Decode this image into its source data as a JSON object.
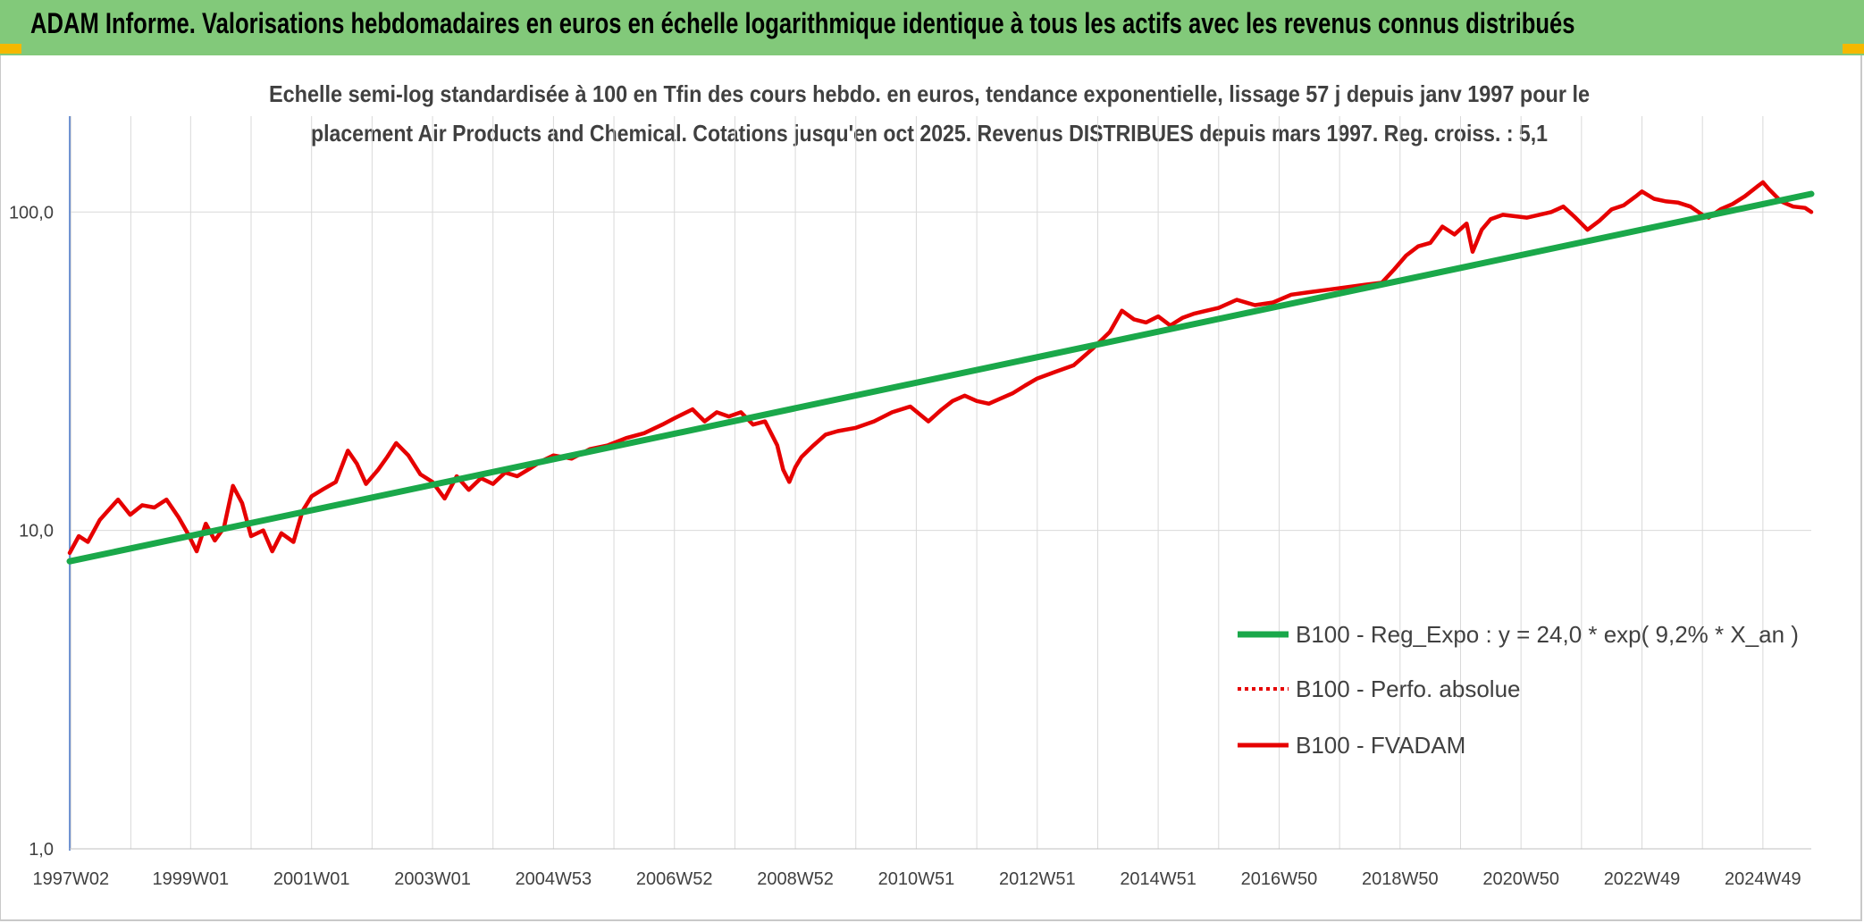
{
  "header": {
    "title": "ADAM Informe. Valorisations hebdomadaires en euros en échelle logarithmique identique à tous les actifs avec les revenus connus distribués"
  },
  "colors": {
    "header_bg": "#82c97a",
    "corner_accent": "#f5b800",
    "trend": "#1aa84a",
    "fvadam": "#e60000",
    "perfo": "#e60000",
    "grid": "#d9d9d9",
    "text": "#404040"
  },
  "chart_data": {
    "type": "line",
    "scale": "log",
    "title_lines": [
      "Echelle semi-log standardisée à 100 en Tfin des cours hebdo. en euros, tendance exponentielle, lissage 57 j depuis janv 1997 pour le",
      "placement Air Products and Chemical. Cotations jusqu'en oct 2025. Revenus DISTRIBUES depuis mars 1997. Reg. croiss. : 5,1"
    ],
    "grid": "vertical and horizontal",
    "legend_placement": "right",
    "y_ticks": [
      {
        "value": 1,
        "label": "1,0"
      },
      {
        "value": 10,
        "label": "10,0"
      },
      {
        "value": 100,
        "label": "100,0"
      }
    ],
    "ylim": [
      1,
      200
    ],
    "xlim": [
      1997.0,
      2025.8
    ],
    "x_ticks": [
      {
        "value": 1997.02,
        "label": "1997W02"
      },
      {
        "value": 1999.0,
        "label": "1999W01"
      },
      {
        "value": 2001.0,
        "label": "2001W01"
      },
      {
        "value": 2003.0,
        "label": "2003W01"
      },
      {
        "value": 2005.0,
        "label": "2004W53"
      },
      {
        "value": 2007.0,
        "label": "2006W52"
      },
      {
        "value": 2009.0,
        "label": "2008W52"
      },
      {
        "value": 2011.0,
        "label": "2010W51"
      },
      {
        "value": 2013.0,
        "label": "2012W51"
      },
      {
        "value": 2015.0,
        "label": "2014W51"
      },
      {
        "value": 2017.0,
        "label": "2016W50"
      },
      {
        "value": 2019.0,
        "label": "2018W50"
      },
      {
        "value": 2021.0,
        "label": "2020W50"
      },
      {
        "value": 2023.0,
        "label": "2022W49"
      },
      {
        "value": 2025.0,
        "label": "2024W49"
      }
    ],
    "series": [
      {
        "name": "B100 - Reg_Expo : y = 24,0 * exp( 9,2% *  X_an )",
        "style": "solid-thick",
        "color": "#1aa84a",
        "x": [
          1997.0,
          2025.8
        ],
        "y": [
          8.0,
          114.0
        ]
      },
      {
        "name": "B100 - Perfo. absolue",
        "style": "dotted",
        "color": "#e60000",
        "x": [],
        "y": []
      },
      {
        "name": "B100 - FVADAM",
        "style": "solid",
        "color": "#e60000",
        "x": [
          1997.0,
          1997.15,
          1997.3,
          1997.5,
          1997.8,
          1998.0,
          1998.2,
          1998.4,
          1998.6,
          1998.8,
          1998.95,
          1999.1,
          1999.25,
          1999.4,
          1999.55,
          1999.7,
          1999.85,
          2000.0,
          2000.2,
          2000.35,
          2000.5,
          2000.7,
          2000.85,
          2001.0,
          2001.2,
          2001.4,
          2001.6,
          2001.75,
          2001.9,
          2002.1,
          2002.25,
          2002.4,
          2002.6,
          2002.8,
          2003.0,
          2003.2,
          2003.4,
          2003.6,
          2003.8,
          2004.0,
          2004.2,
          2004.4,
          2004.6,
          2004.8,
          2005.0,
          2005.3,
          2005.6,
          2005.9,
          2006.2,
          2006.5,
          2006.8,
          2007.0,
          2007.3,
          2007.5,
          2007.7,
          2007.9,
          2008.1,
          2008.3,
          2008.5,
          2008.7,
          2008.8,
          2008.9,
          2009.0,
          2009.1,
          2009.3,
          2009.5,
          2009.7,
          2010.0,
          2010.3,
          2010.6,
          2010.9,
          2011.2,
          2011.4,
          2011.6,
          2011.8,
          2012.0,
          2012.2,
          2012.4,
          2012.6,
          2012.8,
          2013.0,
          2013.3,
          2013.6,
          2013.9,
          2014.2,
          2014.4,
          2014.6,
          2014.8,
          2015.0,
          2015.2,
          2015.4,
          2015.6,
          2015.8,
          2016.0,
          2016.3,
          2016.6,
          2016.9,
          2017.2,
          2017.5,
          2017.8,
          2018.1,
          2018.4,
          2018.7,
          2018.9,
          2019.1,
          2019.3,
          2019.5,
          2019.7,
          2019.9,
          2020.1,
          2020.2,
          2020.35,
          2020.5,
          2020.7,
          2020.9,
          2021.1,
          2021.3,
          2021.5,
          2021.7,
          2021.9,
          2022.1,
          2022.3,
          2022.5,
          2022.7,
          2022.9,
          2023.0,
          2023.2,
          2023.4,
          2023.6,
          2023.8,
          2024.0,
          2024.1,
          2024.3,
          2024.5,
          2024.7,
          2024.9,
          2025.0,
          2025.1,
          2025.3,
          2025.5,
          2025.7,
          2025.8
        ],
        "y": [
          8.5,
          9.6,
          9.2,
          10.8,
          12.5,
          11.2,
          12.0,
          11.8,
          12.5,
          11.0,
          9.8,
          8.6,
          10.5,
          9.3,
          10.2,
          13.8,
          12.2,
          9.6,
          10.0,
          8.6,
          9.8,
          9.2,
          11.5,
          12.8,
          13.5,
          14.2,
          17.8,
          16.2,
          14.0,
          15.5,
          17.0,
          18.8,
          17.2,
          15.0,
          14.2,
          12.6,
          14.8,
          13.4,
          14.6,
          14.0,
          15.2,
          14.8,
          15.6,
          16.5,
          17.2,
          16.8,
          18.0,
          18.5,
          19.5,
          20.2,
          21.5,
          22.5,
          24.0,
          22.0,
          23.5,
          22.8,
          23.5,
          21.5,
          22.0,
          18.5,
          15.5,
          14.2,
          15.8,
          17.0,
          18.5,
          20.0,
          20.5,
          21.0,
          22.0,
          23.5,
          24.5,
          22.0,
          23.8,
          25.5,
          26.5,
          25.5,
          25.0,
          26.0,
          27.0,
          28.5,
          30.0,
          31.5,
          33.0,
          37.0,
          42.0,
          49.0,
          46.0,
          45.0,
          47.0,
          44.0,
          46.5,
          48.0,
          49.0,
          50.0,
          53.0,
          51.0,
          52.0,
          55.0,
          56.0,
          57.0,
          58.0,
          59.0,
          60.0,
          66.0,
          73.0,
          78.0,
          80.0,
          90.0,
          85.0,
          92.0,
          75.0,
          88.0,
          95.0,
          98.0,
          97.0,
          96.0,
          98.0,
          100.0,
          104.0,
          96.0,
          88.0,
          94.0,
          102.0,
          105.0,
          112.0,
          116.0,
          110.0,
          108.0,
          107.0,
          104.0,
          98.0,
          96.0,
          102.0,
          106.0,
          112.0,
          120.0,
          124.0,
          118.0,
          108.0,
          104.0,
          103.0,
          100.0
        ]
      }
    ]
  }
}
